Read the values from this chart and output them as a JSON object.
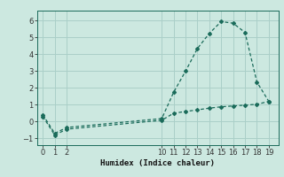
{
  "xlabel": "Humidex (Indice chaleur)",
  "bg_color": "#cce8e0",
  "grid_color": "#aacfc8",
  "line_color": "#1a6b5a",
  "x_upper": [
    0,
    1,
    2,
    10,
    11,
    12,
    13,
    14,
    15,
    16,
    17,
    18,
    19
  ],
  "y_upper": [
    0.4,
    -0.7,
    -0.35,
    0.18,
    1.75,
    3.0,
    4.35,
    5.25,
    5.95,
    5.85,
    5.3,
    2.35,
    1.2
  ],
  "x_lower": [
    0,
    1,
    2,
    10,
    11,
    12,
    13,
    14,
    15,
    16,
    17,
    18,
    19
  ],
  "y_lower": [
    0.3,
    -0.8,
    -0.45,
    0.08,
    0.5,
    0.6,
    0.7,
    0.8,
    0.88,
    0.93,
    0.98,
    1.03,
    1.2
  ],
  "xlim": [
    -0.5,
    19.8
  ],
  "ylim": [
    -1.4,
    6.6
  ],
  "yticks": [
    -1,
    0,
    1,
    2,
    3,
    4,
    5,
    6
  ],
  "xticks": [
    0,
    1,
    2,
    10,
    11,
    12,
    13,
    14,
    15,
    16,
    17,
    18,
    19
  ],
  "label_fontsize": 6.5,
  "tick_fontsize": 6.0
}
